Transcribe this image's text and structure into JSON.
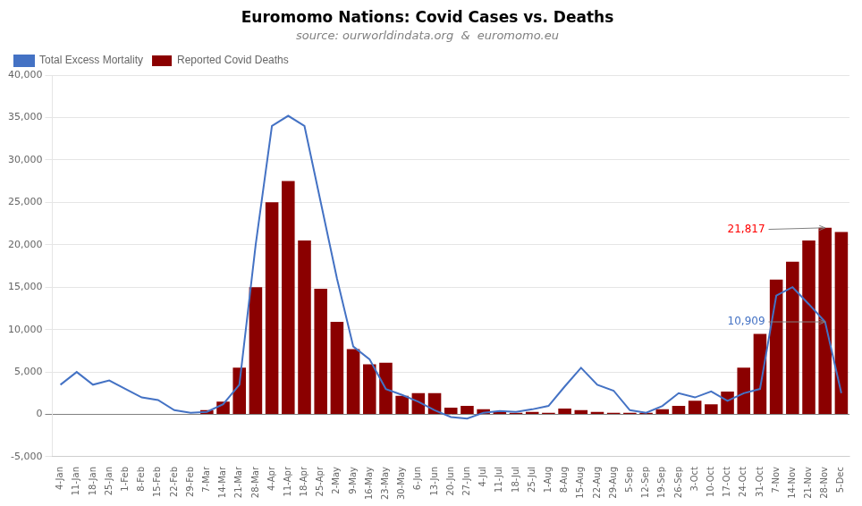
{
  "chart_data": {
    "type": "bar",
    "title": "Euromomo Nations: Covid Cases vs. Deaths",
    "subtitle": "source: ourworldindata.org  &  euromomo.eu",
    "categories": [
      "4-Jan",
      "11-Jan",
      "18-Jan",
      "25-Jan",
      "1-Feb",
      "8-Feb",
      "15-Feb",
      "22-Feb",
      "29-Feb",
      "7-Mar",
      "14-Mar",
      "21-Mar",
      "28-Mar",
      "4-Apr",
      "11-Apr",
      "18-Apr",
      "25-Apr",
      "2-May",
      "9-May",
      "16-May",
      "23-May",
      "30-May",
      "6-Jun",
      "13-Jun",
      "20-Jun",
      "27-Jun",
      "4-Jul",
      "11-Jul",
      "18-Jul",
      "25-Jul",
      "1-Aug",
      "8-Aug",
      "15-Aug",
      "22-Aug",
      "29-Aug",
      "5-Sep",
      "12-Sep",
      "19-Sep",
      "26-Sep",
      "3-Oct",
      "10-Oct",
      "17-Oct",
      "24-Oct",
      "31-Oct",
      "7-Nov",
      "14-Nov",
      "21-Nov",
      "28-Nov",
      "5-Dec"
    ],
    "series": [
      {
        "name": "Reported Covid Deaths",
        "type": "bar",
        "color": "#8B0000",
        "values": [
          0,
          0,
          0,
          0,
          0,
          0,
          0,
          0,
          0,
          500,
          1500,
          5500,
          15000,
          25000,
          27500,
          20500,
          14800,
          10900,
          7700,
          5900,
          6100,
          2200,
          2500,
          2500,
          800,
          1000,
          600,
          300,
          200,
          300,
          200,
          700,
          500,
          300,
          200,
          200,
          200,
          600,
          1000,
          1600,
          1200,
          2700,
          5500,
          9500,
          15900,
          18000,
          20500,
          22000,
          21500
        ]
      },
      {
        "name": "Total Excess Mortality",
        "type": "line",
        "color": "#4472C4",
        "values": [
          3500,
          5000,
          3500,
          4000,
          3000,
          2000,
          1700,
          500,
          200,
          300,
          1200,
          3500,
          20000,
          34000,
          35200,
          34000,
          25000,
          16000,
          8000,
          6500,
          3000,
          2300,
          1500,
          500,
          -300,
          -500,
          200,
          400,
          300,
          600,
          1000,
          3300,
          5500,
          3500,
          2800,
          500,
          200,
          1000,
          2500,
          2000,
          2700,
          1600,
          2500,
          3000,
          14000,
          15000,
          13000,
          10909,
          2500
        ]
      }
    ],
    "ylim": [
      -5000,
      40000
    ],
    "yticks": [
      {
        "value": -5000,
        "label": "-5,000"
      },
      0,
      {
        "value": 5000,
        "label": "5,000"
      },
      {
        "value": 10000,
        "label": "10,000"
      },
      {
        "value": 15000,
        "label": "15,000"
      },
      {
        "value": 20000,
        "label": "20,000"
      },
      {
        "value": 25000,
        "label": "25,000"
      },
      {
        "value": 30000,
        "label": "30,000"
      },
      {
        "value": 35000,
        "label": "35,000"
      },
      {
        "value": 40000,
        "label": "40,000"
      }
    ],
    "grid": true,
    "legend": "upper left",
    "annotations": [
      {
        "text": "21,817",
        "color": "red",
        "x": "17-Oct",
        "y": 21817,
        "target_x": "28-Nov",
        "target_y": 22000
      },
      {
        "text": "10,909",
        "color": "#4472C4",
        "x": "17-Oct",
        "y": 10909,
        "target_x": "28-Nov",
        "target_y": 10909
      }
    ]
  }
}
